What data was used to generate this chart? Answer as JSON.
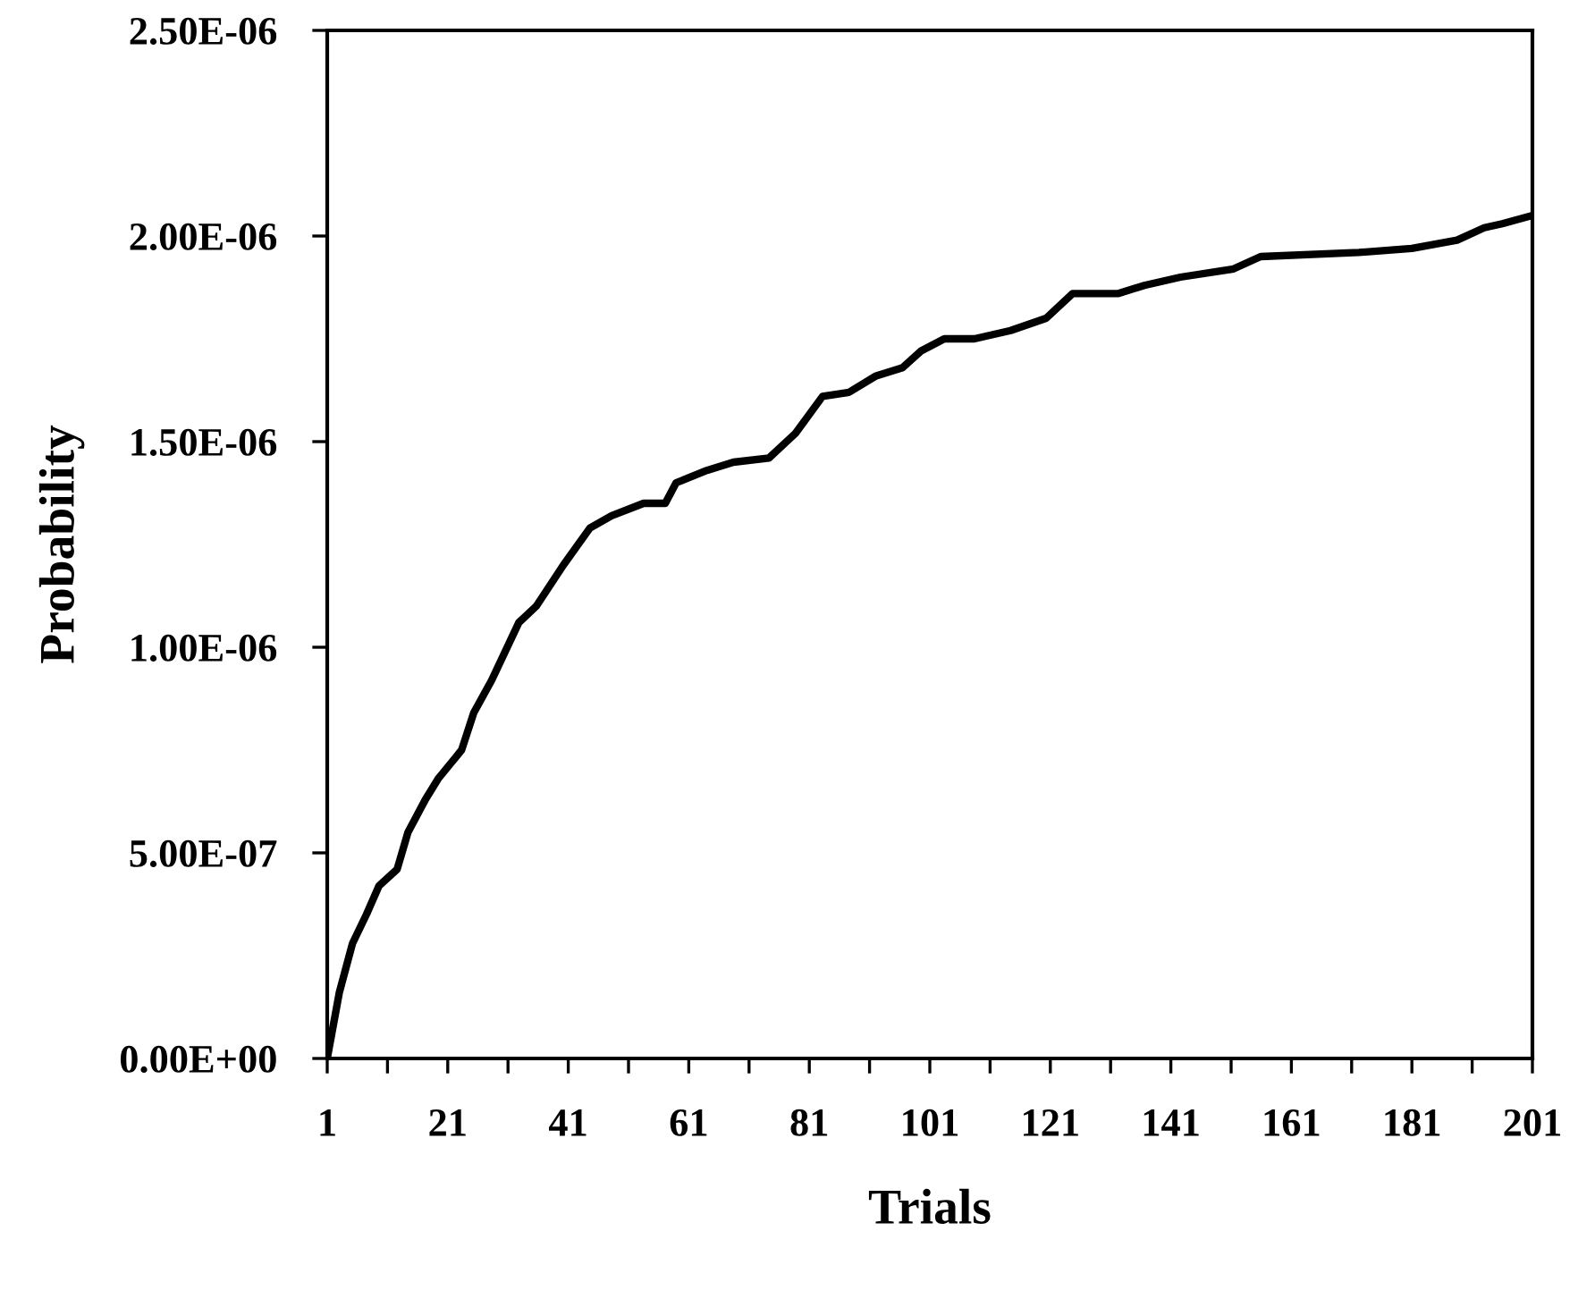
{
  "chart_data": {
    "type": "line",
    "xlabel": "Trials",
    "ylabel": "Probability",
    "x": [
      1,
      3,
      5.2,
      7.5,
      9.6,
      12.6,
      14.4,
      17.3,
      19.4,
      23.3,
      25.3,
      28.3,
      32.8,
      35.7,
      40.2,
      44.6,
      48.2,
      53.5,
      57.1,
      58.9,
      64,
      68.4,
      74.3,
      78.7,
      83.2,
      87.6,
      92.1,
      96.5,
      99.5,
      103.4,
      108.4,
      114.4,
      120.3,
      124.7,
      132.2,
      136.6,
      142.6,
      151.4,
      155.9,
      172.2,
      181,
      188.5,
      193,
      196,
      201
    ],
    "series": [
      {
        "color": "#000000",
        "values": [
          0,
          1.6e-07,
          2.8e-07,
          3.5e-07,
          4.2e-07,
          4.6e-07,
          5.5e-07,
          6.3e-07,
          6.8e-07,
          7.5e-07,
          8.4e-07,
          9.2e-07,
          1.06e-06,
          1.1e-06,
          1.2e-06,
          1.29e-06,
          1.32e-06,
          1.35e-06,
          1.35e-06,
          1.4e-06,
          1.43e-06,
          1.45e-06,
          1.46e-06,
          1.52e-06,
          1.61e-06,
          1.62e-06,
          1.66e-06,
          1.68e-06,
          1.72e-06,
          1.75e-06,
          1.75e-06,
          1.77e-06,
          1.8e-06,
          1.86e-06,
          1.86e-06,
          1.88e-06,
          1.9e-06,
          1.92e-06,
          1.95e-06,
          1.96e-06,
          1.97e-06,
          1.99e-06,
          2.02e-06,
          2.03e-06,
          2.05e-06
        ]
      }
    ],
    "xlim": [
      1,
      201
    ],
    "xticks": [
      1,
      {
        "value": 11,
        "label": null
      },
      21,
      {
        "value": 31,
        "label": null
      },
      41,
      {
        "value": 51,
        "label": null
      },
      61,
      {
        "value": 71,
        "label": null
      },
      81,
      {
        "value": 91,
        "label": null
      },
      101,
      {
        "value": 111,
        "label": null
      },
      121,
      {
        "value": 131,
        "label": null
      },
      141,
      {
        "value": 151,
        "label": null
      },
      161,
      {
        "value": 171,
        "label": null
      },
      181,
      {
        "value": 191,
        "label": null
      },
      201
    ],
    "ylim": [
      0,
      2.5e-06
    ],
    "yticks": [
      {
        "value": 0,
        "label": "0.00E+00"
      },
      {
        "value": 5e-07,
        "label": "5.00E-07"
      },
      {
        "value": 1e-06,
        "label": "1.00E-06"
      },
      {
        "value": 1.5e-06,
        "label": "1.50E-06"
      },
      {
        "value": 2e-06,
        "label": "2.00E-06"
      },
      {
        "value": 2.5e-06,
        "label": "2.50E-06"
      }
    ],
    "grid": false,
    "legend": false,
    "marker": "none",
    "line_style": "solid"
  }
}
